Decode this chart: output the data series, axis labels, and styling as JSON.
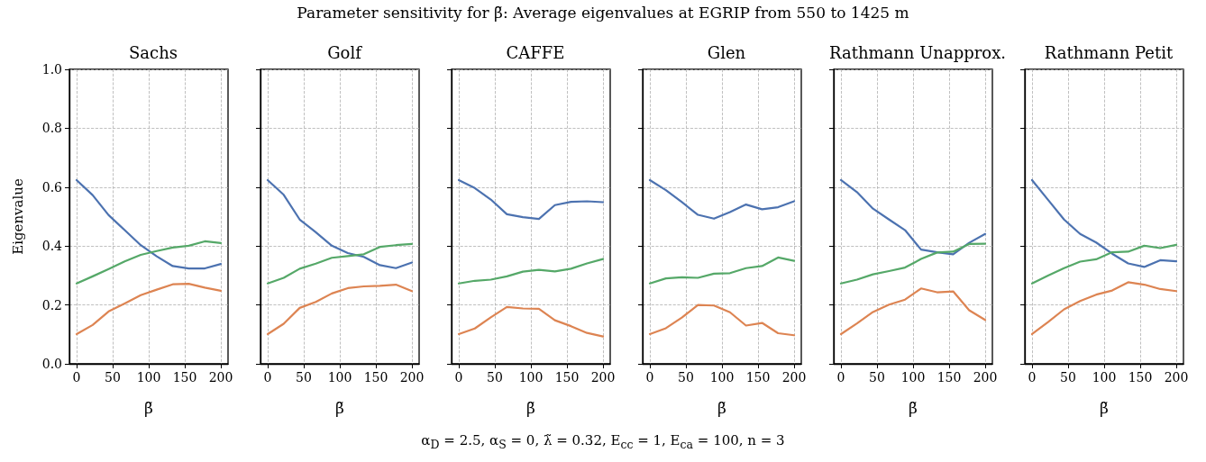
{
  "chart_data": [
    {
      "type": "line",
      "title": "Sachs",
      "xlabel": "β̃",
      "ylabel": "Eigenvalue",
      "annotations": [
        "Parameter sensitivity for β̃: Average eigenvalues at EGRIP from 550 to 1425 m",
        "α$_{D}$ = 2.5, α$_{S}$ = 0, λ̃ = 0.32, E$_{cc}$ = 1, E$_{ca}$ = 100, n = 3"
      ],
      "x": [
        0,
        22.2,
        44.4,
        66.7,
        88.9,
        111.1,
        133.3,
        155.6,
        177.8,
        200
      ],
      "xlim": [
        -10,
        210
      ],
      "xticks": [
        0,
        50,
        100,
        150,
        200
      ],
      "ylim": [
        0,
        1
      ],
      "yticks": [
        {
          "value": 0,
          "label": "0.0"
        },
        0.2,
        0.4,
        0.6,
        0.8,
        {
          "value": 1,
          "label": "1.0"
        }
      ],
      "grid": true,
      "series": [
        {
          "color": "#4c72b0",
          "values": [
            0.624,
            0.573,
            0.505,
            0.454,
            0.403,
            0.365,
            0.332,
            0.324,
            0.324,
            0.339
          ]
        },
        {
          "color": "#dd8452",
          "values": [
            0.101,
            0.132,
            0.178,
            0.205,
            0.233,
            0.252,
            0.27,
            0.272,
            0.259,
            0.248
          ]
        },
        {
          "color": "#55a868",
          "values": [
            0.273,
            0.297,
            0.322,
            0.348,
            0.37,
            0.383,
            0.395,
            0.401,
            0.416,
            0.41
          ]
        }
      ]
    },
    {
      "type": "line",
      "title": "Golf",
      "xlabel": "β̃",
      "x": [
        0,
        22.2,
        44.4,
        66.7,
        88.9,
        111.1,
        133.3,
        155.6,
        177.8,
        200
      ],
      "xlim": [
        -10,
        210
      ],
      "xticks": [
        0,
        50,
        100,
        150,
        200
      ],
      "ylim": [
        0,
        1
      ],
      "yticks": [
        0,
        0.2,
        0.4,
        0.6,
        0.8,
        1
      ],
      "grid": true,
      "tick_labels": "x",
      "series": [
        {
          "color": "#4c72b0",
          "values": [
            0.624,
            0.574,
            0.49,
            0.447,
            0.401,
            0.376,
            0.363,
            0.335,
            0.325,
            0.344
          ]
        },
        {
          "color": "#dd8452",
          "values": [
            0.101,
            0.136,
            0.19,
            0.21,
            0.239,
            0.257,
            0.263,
            0.265,
            0.269,
            0.247
          ]
        },
        {
          "color": "#55a868",
          "values": [
            0.273,
            0.292,
            0.323,
            0.34,
            0.36,
            0.366,
            0.372,
            0.397,
            0.403,
            0.407
          ]
        }
      ]
    },
    {
      "type": "line",
      "title": "CAFFE",
      "xlabel": "β̃",
      "x": [
        0,
        22.2,
        44.4,
        66.7,
        88.9,
        111.1,
        133.3,
        155.6,
        177.8,
        200
      ],
      "xlim": [
        -10,
        210
      ],
      "xticks": [
        0,
        50,
        100,
        150,
        200
      ],
      "ylim": [
        0,
        1
      ],
      "yticks": [
        0,
        0.2,
        0.4,
        0.6,
        0.8,
        1
      ],
      "grid": true,
      "tick_labels": "x",
      "series": [
        {
          "color": "#4c72b0",
          "values": [
            0.624,
            0.597,
            0.558,
            0.508,
            0.498,
            0.492,
            0.539,
            0.55,
            0.552,
            0.549
          ]
        },
        {
          "color": "#dd8452",
          "values": [
            0.101,
            0.12,
            0.158,
            0.193,
            0.188,
            0.187,
            0.148,
            0.128,
            0.105,
            0.093
          ]
        },
        {
          "color": "#55a868",
          "values": [
            0.273,
            0.282,
            0.286,
            0.297,
            0.313,
            0.319,
            0.314,
            0.323,
            0.341,
            0.356
          ]
        }
      ]
    },
    {
      "type": "line",
      "title": "Glen",
      "xlabel": "β̃",
      "x": [
        0,
        22.2,
        44.4,
        66.7,
        88.9,
        111.1,
        133.3,
        155.6,
        177.8,
        200
      ],
      "xlim": [
        -10,
        210
      ],
      "xticks": [
        0,
        50,
        100,
        150,
        200
      ],
      "ylim": [
        0,
        1
      ],
      "yticks": [
        0,
        0.2,
        0.4,
        0.6,
        0.8,
        1
      ],
      "grid": true,
      "tick_labels": "x",
      "series": [
        {
          "color": "#4c72b0",
          "values": [
            0.624,
            0.59,
            0.549,
            0.506,
            0.493,
            0.515,
            0.541,
            0.525,
            0.532,
            0.552
          ]
        },
        {
          "color": "#dd8452",
          "values": [
            0.101,
            0.121,
            0.157,
            0.2,
            0.198,
            0.175,
            0.13,
            0.139,
            0.104,
            0.097
          ]
        },
        {
          "color": "#55a868",
          "values": [
            0.273,
            0.29,
            0.294,
            0.292,
            0.306,
            0.308,
            0.325,
            0.332,
            0.361,
            0.35
          ]
        }
      ]
    },
    {
      "type": "line",
      "title": "Rathmann Unapprox.",
      "xlabel": "β̃",
      "x": [
        0,
        22.2,
        44.4,
        66.7,
        88.9,
        111.1,
        133.3,
        155.6,
        177.8,
        200
      ],
      "xlim": [
        -10,
        210
      ],
      "xticks": [
        0,
        50,
        100,
        150,
        200
      ],
      "ylim": [
        0,
        1
      ],
      "yticks": [
        0,
        0.2,
        0.4,
        0.6,
        0.8,
        1
      ],
      "grid": true,
      "tick_labels": "x",
      "series": [
        {
          "color": "#4c72b0",
          "values": [
            0.624,
            0.583,
            0.527,
            0.49,
            0.454,
            0.388,
            0.379,
            0.372,
            0.411,
            0.441
          ]
        },
        {
          "color": "#dd8452",
          "values": [
            0.101,
            0.137,
            0.176,
            0.201,
            0.218,
            0.256,
            0.243,
            0.246,
            0.182,
            0.149
          ]
        },
        {
          "color": "#55a868",
          "values": [
            0.273,
            0.286,
            0.304,
            0.315,
            0.327,
            0.356,
            0.378,
            0.381,
            0.407,
            0.408
          ]
        }
      ]
    },
    {
      "type": "line",
      "title": "Rathmann Petit",
      "xlabel": "β̃",
      "x": [
        0,
        22.2,
        44.4,
        66.7,
        88.9,
        111.1,
        133.3,
        155.6,
        177.8,
        200
      ],
      "xlim": [
        -10,
        210
      ],
      "xticks": [
        0,
        50,
        100,
        150,
        200
      ],
      "ylim": [
        0,
        1
      ],
      "yticks": [
        0,
        0.2,
        0.4,
        0.6,
        0.8,
        1
      ],
      "grid": true,
      "tick_labels": "x",
      "series": [
        {
          "color": "#4c72b0",
          "values": [
            0.624,
            0.557,
            0.49,
            0.441,
            0.412,
            0.374,
            0.341,
            0.329,
            0.352,
            0.348
          ]
        },
        {
          "color": "#dd8452",
          "values": [
            0.101,
            0.142,
            0.185,
            0.213,
            0.235,
            0.249,
            0.277,
            0.269,
            0.254,
            0.247
          ]
        },
        {
          "color": "#55a868",
          "values": [
            0.273,
            0.3,
            0.325,
            0.347,
            0.355,
            0.379,
            0.381,
            0.401,
            0.393,
            0.404
          ]
        }
      ]
    }
  ]
}
